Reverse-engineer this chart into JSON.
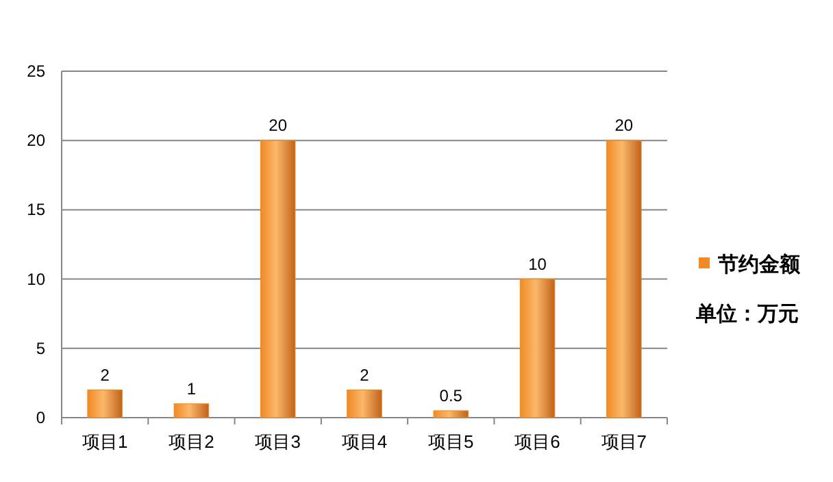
{
  "chart_data": {
    "type": "bar",
    "categories": [
      "项目1",
      "项目2",
      "项目3",
      "项目4",
      "项目5",
      "项目6",
      "项目7"
    ],
    "series": [
      {
        "name": "节约金额",
        "color": "#f08a24",
        "values": [
          2,
          1,
          20,
          2,
          0.5,
          10,
          20
        ]
      }
    ],
    "ylim": [
      0,
      25
    ],
    "yticks": [
      0,
      5,
      10,
      15,
      20,
      25
    ],
    "grid": "y",
    "legend": "right",
    "data_labels": true,
    "annotations": [
      "单位：万元"
    ]
  }
}
